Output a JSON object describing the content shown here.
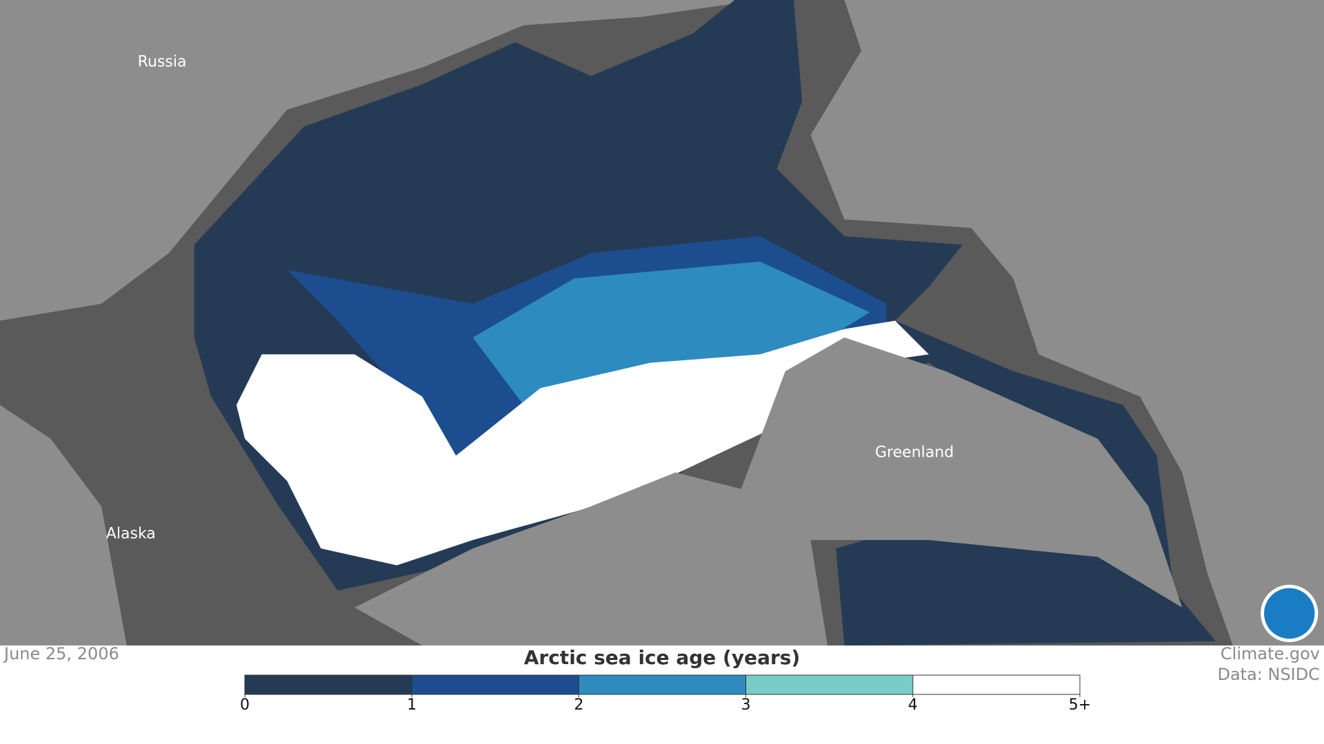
{
  "map": {
    "labels": [
      "Russia",
      "Alaska",
      "Greenland"
    ]
  },
  "date": "June 25, 2006",
  "credits": [
    "Climate.gov",
    "Data: NSIDC"
  ],
  "legend": {
    "title": "Arctic sea ice age (years)",
    "ticks": [
      0,
      1,
      2,
      3,
      4,
      {
        "value": 5,
        "label": "5+"
      }
    ],
    "colors": [
      "#253a55",
      "#1c4e8f",
      "#2e8bc0",
      "#78cdc7",
      "#ffffff"
    ]
  }
}
